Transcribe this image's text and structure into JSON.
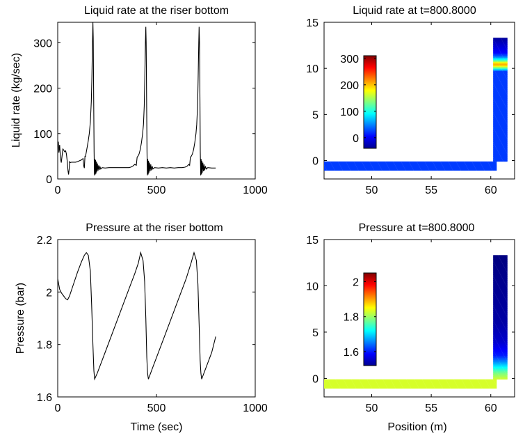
{
  "chart_data": [
    {
      "type": "line",
      "title": "Liquid rate at the riser bottom",
      "xlabel": "",
      "ylabel": "Liquid rate (kg/sec)",
      "xlim": [
        0,
        1000
      ],
      "ylim": [
        0,
        345
      ],
      "xticks": [
        0,
        500,
        1000
      ],
      "yticks": [
        0,
        100,
        200,
        300
      ],
      "line_color": "#000000",
      "series": [
        {
          "points": [
            [
              0,
              70
            ],
            [
              3,
              82
            ],
            [
              6,
              58
            ],
            [
              10,
              75
            ],
            [
              14,
              45
            ],
            [
              18,
              36
            ],
            [
              22,
              50
            ],
            [
              26,
              66
            ],
            [
              30,
              64
            ],
            [
              35,
              60
            ],
            [
              40,
              62
            ],
            [
              44,
              55
            ],
            [
              48,
              40
            ],
            [
              52,
              18
            ],
            [
              55,
              10
            ],
            [
              58,
              22
            ],
            [
              60,
              38
            ],
            [
              64,
              36
            ],
            [
              70,
              37
            ],
            [
              80,
              37
            ],
            [
              90,
              37
            ],
            [
              100,
              38
            ],
            [
              110,
              40
            ],
            [
              120,
              42
            ],
            [
              128,
              45
            ],
            [
              132,
              28
            ],
            [
              135,
              24
            ],
            [
              138,
              50
            ],
            [
              141,
              50
            ],
            [
              145,
              60
            ],
            [
              150,
              72
            ],
            [
              155,
              85
            ],
            [
              160,
              100
            ],
            [
              165,
              125
            ],
            [
              170,
              170
            ],
            [
              173,
              220
            ],
            [
              176,
              300
            ],
            [
              178,
              345
            ],
            [
              180,
              310
            ],
            [
              182,
              180
            ],
            [
              184,
              60
            ],
            [
              186,
              8
            ],
            [
              188,
              44
            ],
            [
              190,
              10
            ],
            [
              192,
              42
            ],
            [
              194,
              12
            ],
            [
              196,
              38
            ],
            [
              198,
              16
            ],
            [
              201,
              34
            ],
            [
              204,
              18
            ],
            [
              207,
              30
            ],
            [
              210,
              20
            ],
            [
              214,
              27
            ],
            [
              218,
              22
            ],
            [
              225,
              25
            ],
            [
              240,
              24
            ],
            [
              260,
              25
            ],
            [
              280,
              25
            ],
            [
              300,
              25
            ],
            [
              320,
              25
            ],
            [
              340,
              25
            ],
            [
              360,
              25
            ],
            [
              370,
              26
            ],
            [
              380,
              28
            ],
            [
              390,
              32
            ],
            [
              398,
              30
            ],
            [
              402,
              48
            ],
            [
              406,
              50
            ],
            [
              412,
              55
            ],
            [
              418,
              65
            ],
            [
              424,
              80
            ],
            [
              430,
              100
            ],
            [
              434,
              120
            ],
            [
              438,
              160
            ],
            [
              441,
              220
            ],
            [
              444,
              300
            ],
            [
              446,
              335
            ],
            [
              448,
              300
            ],
            [
              450,
              180
            ],
            [
              452,
              60
            ],
            [
              454,
              8
            ],
            [
              456,
              44
            ],
            [
              458,
              10
            ],
            [
              460,
              40
            ],
            [
              462,
              14
            ],
            [
              465,
              36
            ],
            [
              468,
              17
            ],
            [
              471,
              32
            ],
            [
              474,
              19
            ],
            [
              478,
              28
            ],
            [
              482,
              22
            ],
            [
              490,
              25
            ],
            [
              510,
              24
            ],
            [
              530,
              25
            ],
            [
              550,
              24
            ],
            [
              570,
              25
            ],
            [
              590,
              24
            ],
            [
              610,
              25
            ],
            [
              630,
              25
            ],
            [
              645,
              26
            ],
            [
              655,
              28
            ],
            [
              664,
              32
            ],
            [
              668,
              30
            ],
            [
              672,
              48
            ],
            [
              676,
              50
            ],
            [
              682,
              55
            ],
            [
              688,
              65
            ],
            [
              694,
              80
            ],
            [
              700,
              100
            ],
            [
              704,
              120
            ],
            [
              708,
              160
            ],
            [
              711,
              220
            ],
            [
              714,
              300
            ],
            [
              716,
              335
            ],
            [
              718,
              300
            ],
            [
              720,
              180
            ],
            [
              722,
              60
            ],
            [
              724,
              8
            ],
            [
              726,
              44
            ],
            [
              728,
              10
            ],
            [
              730,
              40
            ],
            [
              732,
              14
            ],
            [
              735,
              36
            ],
            [
              738,
              17
            ],
            [
              741,
              32
            ],
            [
              744,
              19
            ],
            [
              748,
              28
            ],
            [
              752,
              22
            ],
            [
              760,
              25
            ],
            [
              780,
              24
            ],
            [
              800,
              24
            ]
          ]
        }
      ]
    },
    {
      "type": "heatmap",
      "title": "Liquid rate at t=800.8000",
      "xlabel": "",
      "ylabel": "",
      "xlim": [
        46,
        62
      ],
      "ylim": [
        -2,
        15
      ],
      "xticks": [
        50,
        55,
        60
      ],
      "yticks": [
        0,
        5,
        10,
        15
      ],
      "colorbar": {
        "min": -40,
        "max": 310,
        "ticks": [
          0,
          100,
          200,
          300
        ]
      },
      "horizontal_pipe": {
        "x": [
          46,
          60.5
        ],
        "y": [
          -1.1,
          -0.1
        ],
        "value": 24
      },
      "riser": {
        "x": [
          60.2,
          61.4
        ],
        "y_top": 13.3,
        "profile": [
          [
            -0.1,
            24
          ],
          [
            9.7,
            24
          ],
          [
            10.1,
            140
          ],
          [
            10.4,
            210
          ],
          [
            10.6,
            190
          ],
          [
            10.9,
            110
          ],
          [
            11.3,
            40
          ],
          [
            11.7,
            5
          ],
          [
            13.3,
            -30
          ]
        ]
      }
    },
    {
      "type": "line",
      "title": "Pressure at the riser bottom",
      "xlabel": "Time (sec)",
      "ylabel": "Pressure (bar)",
      "xlim": [
        0,
        1000
      ],
      "ylim": [
        1.6,
        2.2
      ],
      "xticks": [
        0,
        500,
        1000
      ],
      "yticks": [
        1.6,
        1.8,
        2,
        2.2
      ],
      "line_color": "#000000",
      "series": [
        {
          "points": [
            [
              0,
              2.05
            ],
            [
              5,
              2.03
            ],
            [
              10,
              2.01
            ],
            [
              20,
              1.995
            ],
            [
              30,
              1.985
            ],
            [
              40,
              1.975
            ],
            [
              50,
              1.97
            ],
            [
              60,
              1.985
            ],
            [
              80,
              2.03
            ],
            [
              100,
              2.075
            ],
            [
              120,
              2.115
            ],
            [
              135,
              2.14
            ],
            [
              145,
              2.15
            ],
            [
              155,
              2.14
            ],
            [
              165,
              2.08
            ],
            [
              172,
              1.95
            ],
            [
              178,
              1.8
            ],
            [
              183,
              1.7
            ],
            [
              187,
              1.668
            ],
            [
              200,
              1.69
            ],
            [
              240,
              1.77
            ],
            [
              300,
              1.89
            ],
            [
              360,
              2.01
            ],
            [
              390,
              2.07
            ],
            [
              408,
              2.11
            ],
            [
              420,
              2.15
            ],
            [
              432,
              2.12
            ],
            [
              440,
              2.04
            ],
            [
              446,
              1.9
            ],
            [
              451,
              1.75
            ],
            [
              455,
              1.69
            ],
            [
              459,
              1.668
            ],
            [
              480,
              1.71
            ],
            [
              540,
              1.83
            ],
            [
              600,
              1.95
            ],
            [
              650,
              2.05
            ],
            [
              675,
              2.11
            ],
            [
              690,
              2.15
            ],
            [
              702,
              2.12
            ],
            [
              710,
              2.03
            ],
            [
              716,
              1.88
            ],
            [
              721,
              1.74
            ],
            [
              725,
              1.69
            ],
            [
              729,
              1.668
            ],
            [
              750,
              1.71
            ],
            [
              780,
              1.77
            ],
            [
              800,
              1.83
            ]
          ]
        }
      ]
    },
    {
      "type": "heatmap",
      "title": "Pressure at t=800.8000",
      "xlabel": "Position (m)",
      "ylabel": "",
      "xlim": [
        46,
        62
      ],
      "ylim": [
        -2,
        15
      ],
      "xticks": [
        50,
        55,
        60
      ],
      "yticks": [
        0,
        5,
        10,
        15
      ],
      "colorbar": {
        "min": 1.52,
        "max": 2.05,
        "ticks": [
          1.6,
          1.8,
          2
        ]
      },
      "horizontal_pipe": {
        "x": [
          46,
          60.5
        ],
        "y": [
          -1.1,
          -0.1
        ],
        "value": 1.83
      },
      "riser": {
        "x": [
          60.2,
          61.4
        ],
        "y_top": 13.3,
        "profile": [
          [
            -0.1,
            1.83
          ],
          [
            0.6,
            1.78
          ],
          [
            1.2,
            1.72
          ],
          [
            1.8,
            1.66
          ],
          [
            2.5,
            1.6
          ],
          [
            4,
            1.56
          ],
          [
            6,
            1.54
          ],
          [
            13.3,
            1.52
          ]
        ]
      }
    }
  ]
}
